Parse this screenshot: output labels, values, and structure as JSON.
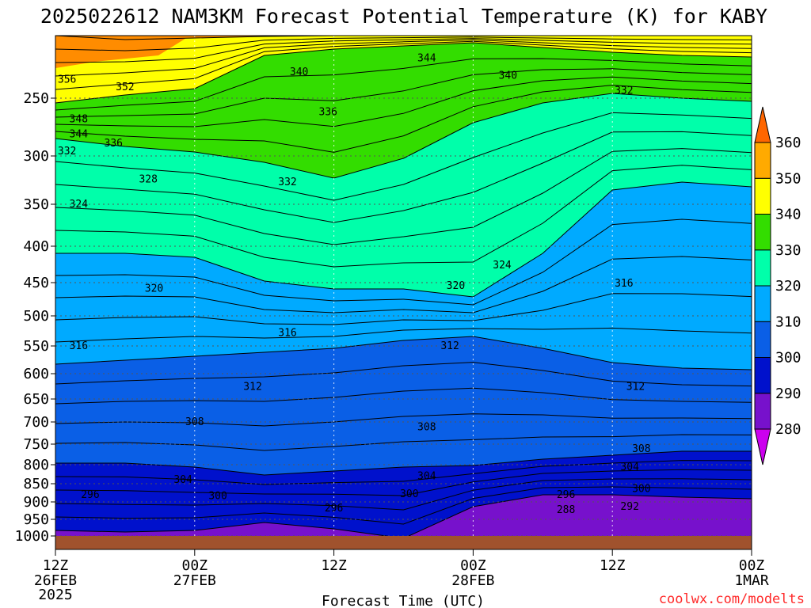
{
  "chart_data": {
    "type": "heatmap",
    "title": "2025022612 NAM3KM Forecast Potential Temperature (K) for KABY",
    "xlabel": "Forecast Time (UTC)",
    "credit": "coolwx.com/modelts",
    "x_ticks": [
      {
        "hour": 0,
        "l1": "12Z",
        "l2": "26FEB",
        "l3": "2025"
      },
      {
        "hour": 12,
        "l1": "00Z",
        "l2": "27FEB",
        "l3": ""
      },
      {
        "hour": 24,
        "l1": "12Z",
        "l2": "",
        "l3": ""
      },
      {
        "hour": 36,
        "l1": "00Z",
        "l2": "28FEB",
        "l3": ""
      },
      {
        "hour": 48,
        "l1": "12Z",
        "l2": "",
        "l3": ""
      },
      {
        "hour": 60,
        "l1": "00Z",
        "l2": "1MAR",
        "l3": ""
      }
    ],
    "y_ticks": [
      250,
      300,
      350,
      400,
      450,
      500,
      550,
      600,
      650,
      700,
      750,
      800,
      850,
      900,
      950,
      1000
    ],
    "x_range_hours": [
      0,
      60
    ],
    "y_range_hpa": [
      200,
      1000
    ],
    "colorbar": {
      "levels": [
        280,
        290,
        300,
        310,
        320,
        330,
        340,
        350,
        360
      ],
      "labels": [
        "280",
        "290",
        "300",
        "310",
        "320",
        "330",
        "340",
        "350",
        "360"
      ],
      "colors": [
        "#cc00ee",
        "#7711cc",
        "#0011cc",
        "#0a5fe6",
        "#00aaff",
        "#00ffaa",
        "#33dd00",
        "#ffff00",
        "#ffaa00",
        "#ff6600"
      ]
    },
    "contour_labels": [
      {
        "text": "344",
        "hour": 32.0,
        "p": 218
      },
      {
        "text": "340",
        "hour": 39.0,
        "p": 232
      },
      {
        "text": "356",
        "hour": 1.0,
        "p": 235
      },
      {
        "text": "352",
        "hour": 6.0,
        "p": 241
      },
      {
        "text": "340",
        "hour": 21.0,
        "p": 229
      },
      {
        "text": "332",
        "hour": 49.0,
        "p": 244
      },
      {
        "text": "336",
        "hour": 23.5,
        "p": 262
      },
      {
        "text": "348",
        "hour": 2.0,
        "p": 268
      },
      {
        "text": "344",
        "hour": 2.0,
        "p": 281
      },
      {
        "text": "336",
        "hour": 5.0,
        "p": 289
      },
      {
        "text": "332",
        "hour": 1.0,
        "p": 296
      },
      {
        "text": "328",
        "hour": 8.0,
        "p": 324
      },
      {
        "text": "332",
        "hour": 20.0,
        "p": 327
      },
      {
        "text": "324",
        "hour": 2.0,
        "p": 350
      },
      {
        "text": "324",
        "hour": 38.5,
        "p": 426
      },
      {
        "text": "320",
        "hour": 8.5,
        "p": 459
      },
      {
        "text": "320",
        "hour": 34.5,
        "p": 455
      },
      {
        "text": "316",
        "hour": 49.0,
        "p": 451
      },
      {
        "text": "316",
        "hour": 20.0,
        "p": 528
      },
      {
        "text": "312",
        "hour": 34.0,
        "p": 550
      },
      {
        "text": "316",
        "hour": 2.0,
        "p": 550
      },
      {
        "text": "312",
        "hour": 17.0,
        "p": 626
      },
      {
        "text": "312",
        "hour": 50.0,
        "p": 626
      },
      {
        "text": "308",
        "hour": 12.0,
        "p": 700
      },
      {
        "text": "308",
        "hour": 32.0,
        "p": 712
      },
      {
        "text": "308",
        "hour": 50.5,
        "p": 762
      },
      {
        "text": "304",
        "hour": 49.5,
        "p": 806
      },
      {
        "text": "304",
        "hour": 11.0,
        "p": 840
      },
      {
        "text": "304",
        "hour": 32.0,
        "p": 830
      },
      {
        "text": "300",
        "hour": 50.5,
        "p": 864
      },
      {
        "text": "296",
        "hour": 3.0,
        "p": 880
      },
      {
        "text": "300",
        "hour": 14.0,
        "p": 884
      },
      {
        "text": "300",
        "hour": 30.5,
        "p": 878
      },
      {
        "text": "296",
        "hour": 44.0,
        "p": 880
      },
      {
        "text": "292",
        "hour": 49.5,
        "p": 914
      },
      {
        "text": "296",
        "hour": 24.0,
        "p": 918
      },
      {
        "text": "288",
        "hour": 44.0,
        "p": 923
      }
    ]
  }
}
